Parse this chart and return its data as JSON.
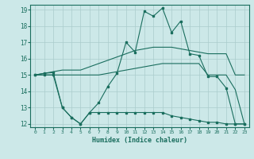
{
  "xlabel": "Humidex (Indice chaleur)",
  "bg_color": "#cce8e8",
  "grid_color": "#aacccc",
  "line_color": "#1a6e5e",
  "xlim": [
    -0.5,
    23.5
  ],
  "ylim": [
    11.8,
    19.3
  ],
  "yticks": [
    12,
    13,
    14,
    15,
    16,
    17,
    18,
    19
  ],
  "xticks": [
    0,
    1,
    2,
    3,
    4,
    5,
    6,
    7,
    8,
    9,
    10,
    11,
    12,
    13,
    14,
    15,
    16,
    17,
    18,
    19,
    20,
    21,
    22,
    23
  ],
  "line_max_x": [
    0,
    1,
    2,
    3,
    4,
    5,
    6,
    7,
    8,
    9,
    10,
    11,
    12,
    13,
    14,
    15,
    16,
    17,
    18,
    19,
    20,
    21,
    22,
    23
  ],
  "line_max_y": [
    15.0,
    15.1,
    15.2,
    15.3,
    15.3,
    15.3,
    15.5,
    15.7,
    15.9,
    16.1,
    16.3,
    16.5,
    16.6,
    16.7,
    16.7,
    16.7,
    16.6,
    16.5,
    16.4,
    16.3,
    16.3,
    16.3,
    15.0,
    15.0
  ],
  "line_mid_x": [
    0,
    1,
    2,
    3,
    4,
    5,
    6,
    7,
    8,
    9,
    10,
    11,
    12,
    13,
    14,
    15,
    16,
    17,
    18,
    19,
    20,
    21,
    22,
    23
  ],
  "line_mid_y": [
    15.0,
    15.0,
    15.0,
    15.0,
    15.0,
    15.0,
    15.0,
    15.0,
    15.1,
    15.2,
    15.3,
    15.4,
    15.5,
    15.6,
    15.7,
    15.7,
    15.7,
    15.7,
    15.7,
    15.0,
    15.0,
    15.0,
    14.1,
    12.0
  ],
  "line_hot_x": [
    0,
    1,
    2,
    3,
    4,
    5,
    6,
    7,
    8,
    9,
    10,
    11,
    12,
    13,
    14,
    15,
    16,
    17,
    18,
    19,
    20,
    21,
    22,
    23
  ],
  "line_hot_y": [
    15.0,
    15.1,
    15.15,
    13.0,
    12.4,
    12.0,
    12.7,
    13.3,
    14.3,
    15.1,
    17.0,
    16.4,
    18.9,
    18.6,
    19.1,
    17.6,
    18.3,
    16.3,
    16.2,
    14.9,
    14.9,
    14.2,
    12.0,
    12.0
  ],
  "line_bot_x": [
    0,
    1,
    2,
    3,
    4,
    5,
    6,
    7,
    8,
    9,
    10,
    11,
    12,
    13,
    14,
    15,
    16,
    17,
    18,
    19,
    20,
    21,
    22,
    23
  ],
  "line_bot_y": [
    15.0,
    15.0,
    15.0,
    13.0,
    12.4,
    12.0,
    12.7,
    12.7,
    12.7,
    12.7,
    12.7,
    12.7,
    12.7,
    12.7,
    12.7,
    12.5,
    12.4,
    12.3,
    12.2,
    12.1,
    12.1,
    12.0,
    12.0,
    12.0
  ]
}
